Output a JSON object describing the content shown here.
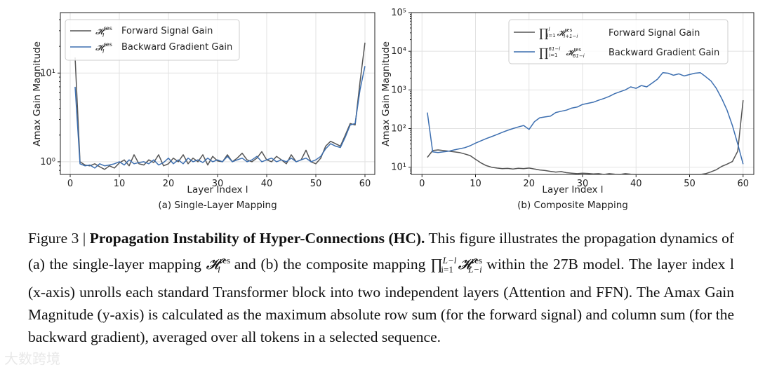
{
  "chart_data": [
    {
      "type": "line",
      "subtitle": "(a) Single-Layer Mapping",
      "xlabel": "Layer Index l",
      "ylabel": "Amax Gain Magnitude",
      "yscale": "log",
      "xlim": [
        -2,
        62
      ],
      "ylim": [
        0.72,
        48
      ],
      "xticks": [
        "0",
        "10",
        "20",
        "30",
        "40",
        "50",
        "60"
      ],
      "yticks": [
        "10⁰",
        "10¹"
      ],
      "grid": true,
      "legend_position": "upper-left",
      "series": [
        {
          "name": "H_l^res Forward Signal Gain",
          "legend_label": "Forward Signal Gain",
          "color": "#555555",
          "x": [
            1,
            2,
            3,
            4,
            5,
            6,
            7,
            8,
            9,
            10,
            11,
            12,
            13,
            14,
            15,
            16,
            17,
            18,
            19,
            20,
            21,
            22,
            23,
            24,
            25,
            26,
            27,
            28,
            29,
            30,
            31,
            32,
            33,
            34,
            35,
            36,
            37,
            38,
            39,
            40,
            41,
            42,
            43,
            44,
            45,
            46,
            47,
            48,
            49,
            50,
            51,
            52,
            53,
            54,
            55,
            56,
            57,
            58,
            59,
            60
          ],
          "values": [
            15,
            1.0,
            0.92,
            0.9,
            0.95,
            0.88,
            0.82,
            0.9,
            0.85,
            0.97,
            1.05,
            0.9,
            1.2,
            0.95,
            0.92,
            1.05,
            0.98,
            1.2,
            0.9,
            0.95,
            1.1,
            1.0,
            1.2,
            0.95,
            1.1,
            1.0,
            1.2,
            0.92,
            1.15,
            1.02,
            1.0,
            1.2,
            1.0,
            1.1,
            1.25,
            1.05,
            1.0,
            1.1,
            1.3,
            1.05,
            1.0,
            1.15,
            1.05,
            0.95,
            1.2,
            1.0,
            1.05,
            1.35,
            1.0,
            0.95,
            1.1,
            1.5,
            1.7,
            1.6,
            1.5,
            2.0,
            2.7,
            2.6,
            8,
            22
          ]
        },
        {
          "name": "H_l^res Backward Gradient Gain",
          "legend_label": "Backward Gradient Gain",
          "color": "#3d6fb0",
          "x": [
            1,
            2,
            3,
            4,
            5,
            6,
            7,
            8,
            9,
            10,
            11,
            12,
            13,
            14,
            15,
            16,
            17,
            18,
            19,
            20,
            21,
            22,
            23,
            24,
            25,
            26,
            27,
            28,
            29,
            30,
            31,
            32,
            33,
            34,
            35,
            36,
            37,
            38,
            39,
            40,
            41,
            42,
            43,
            44,
            45,
            46,
            47,
            48,
            49,
            50,
            51,
            52,
            53,
            54,
            55,
            56,
            57,
            58,
            59,
            60
          ],
          "values": [
            7,
            0.95,
            0.9,
            0.92,
            0.85,
            0.95,
            0.9,
            0.92,
            0.95,
            1.0,
            0.92,
            1.05,
            0.95,
            0.98,
            1.0,
            0.95,
            1.05,
            0.92,
            0.98,
            1.1,
            0.95,
            1.05,
            0.95,
            1.1,
            1.0,
            1.05,
            0.98,
            1.1,
            1.0,
            1.05,
            1.0,
            1.15,
            1.0,
            1.05,
            1.1,
            1.0,
            1.05,
            1.15,
            1.0,
            1.05,
            1.1,
            1.0,
            1.05,
            1.0,
            1.1,
            1.0,
            1.05,
            1.1,
            1.0,
            1.05,
            1.15,
            1.4,
            1.6,
            1.5,
            1.45,
            1.9,
            2.6,
            2.7,
            6.5,
            12
          ]
        }
      ]
    },
    {
      "type": "line",
      "subtitle": "(b) Composite Mapping",
      "xlabel": "Layer Index l",
      "ylabel": "Amax Gain Magnitude",
      "yscale": "log",
      "xlim": [
        -2,
        62
      ],
      "ylim": [
        6.5,
        100000
      ],
      "xticks": [
        "0",
        "10",
        "20",
        "30",
        "40",
        "50",
        "60"
      ],
      "yticks": [
        "10¹",
        "10²",
        "10³",
        "10⁴",
        "10⁵"
      ],
      "grid": true,
      "legend_position": "upper-right",
      "series": [
        {
          "name": "∏ H_{l+1-i}^res Forward Signal Gain",
          "legend_label": "Forward Signal Gain",
          "color": "#555555",
          "x": [
            1,
            2,
            3,
            4,
            5,
            6,
            7,
            8,
            9,
            10,
            11,
            12,
            13,
            14,
            15,
            16,
            17,
            18,
            19,
            20,
            21,
            22,
            23,
            24,
            25,
            26,
            27,
            28,
            29,
            30,
            31,
            32,
            33,
            34,
            35,
            36,
            37,
            38,
            39,
            40,
            41,
            42,
            43,
            44,
            45,
            46,
            47,
            48,
            49,
            50,
            51,
            52,
            53,
            54,
            55,
            56,
            57,
            58,
            59,
            60
          ],
          "values": [
            18,
            27,
            28,
            27,
            26,
            25,
            24,
            22,
            20,
            16,
            13,
            11,
            10,
            9.5,
            9.2,
            9.3,
            9.0,
            9.4,
            9.2,
            9.5,
            9.0,
            8.5,
            8.2,
            7.8,
            7.5,
            7.7,
            7.2,
            7.0,
            6.8,
            7.0,
            6.9,
            6.7,
            6.8,
            6.5,
            6.8,
            6.6,
            6.5,
            6.8,
            6.6,
            6.0,
            5.6,
            5.3,
            5.4,
            5.2,
            5.5,
            5.3,
            5.6,
            5.7,
            5.6,
            5.5,
            5.4,
            6.0,
            6.8,
            7.6,
            8.6,
            10.5,
            12,
            14,
            26,
            540
          ]
        },
        {
          "name": "∏ H_{61-i}^res Backward Gradient Gain",
          "legend_label": "Backward Gradient Gain",
          "color": "#3d6fb0",
          "x": [
            1,
            2,
            3,
            4,
            5,
            6,
            7,
            8,
            9,
            10,
            11,
            12,
            13,
            14,
            15,
            16,
            17,
            18,
            19,
            20,
            21,
            22,
            23,
            24,
            25,
            26,
            27,
            28,
            29,
            30,
            31,
            32,
            33,
            34,
            35,
            36,
            37,
            38,
            39,
            40,
            41,
            42,
            43,
            44,
            45,
            46,
            47,
            48,
            49,
            50,
            51,
            52,
            53,
            54,
            55,
            56,
            57,
            58,
            59,
            60
          ],
          "values": [
            260,
            25,
            24,
            25,
            26,
            28,
            30,
            32,
            36,
            42,
            48,
            55,
            62,
            70,
            80,
            90,
            100,
            110,
            120,
            95,
            150,
            190,
            200,
            210,
            260,
            280,
            300,
            340,
            360,
            420,
            450,
            480,
            540,
            600,
            680,
            800,
            900,
            1000,
            1200,
            1100,
            1300,
            1200,
            1500,
            1900,
            2800,
            2700,
            2400,
            2600,
            2300,
            2500,
            2700,
            2800,
            2200,
            1700,
            1100,
            600,
            300,
            120,
            40,
            12
          ]
        }
      ]
    }
  ],
  "legend_a": {
    "fwd_math": "𝓗",
    "fwd_sup": "res",
    "fwd_sub": "l",
    "fwd_label": "Forward Signal Gain",
    "bwd_math": "𝓗",
    "bwd_sup": "res",
    "bwd_sub": "l",
    "bwd_label": "Backward Gradient Gain"
  },
  "legend_b": {
    "fwd_math": "∏",
    "fwd_lim_top": "l",
    "fwd_lim_bot": "i=1",
    "fwd_term": "𝓗",
    "fwd_term_sup": "res",
    "fwd_term_sub": "l+1−i",
    "fwd_label": "Forward Signal Gain",
    "bwd_math": "∏",
    "bwd_lim_top": "61−l",
    "bwd_lim_bot": "i=1",
    "bwd_term": "𝓗",
    "bwd_term_sup": "res",
    "bwd_term_sub": "61−i",
    "bwd_label": "Backward Gradient Gain"
  },
  "caption": {
    "figure_label": "Figure 3 |",
    "title": "Propagation Instability of Hyper-Connections (HC).",
    "line1_rest": "This figure illustrates the",
    "line2_a": "propagation dynamics of (a) the single-layer mapping",
    "m1": "𝓗",
    "m1_sup": "res",
    "m1_sub": "l",
    "line2_b": "and (b) the composite mapping",
    "m2_prod": "∏",
    "m2_top": "L−l",
    "m2_bot": "i=1",
    "m2_term": "𝓗",
    "m2_sup": "res",
    "m2_sub": "L−i",
    "line3": "within the 27B model. The layer index l (x-axis) unrolls each standard Transformer block into two independent layers (Attention and FFN). The Amax Gain Magnitude (y-axis) is calculated as the maximum absolute row sum (for the forward signal) and column sum (for the backward gradient), averaged over all tokens in a selected sequence."
  },
  "watermark": "大数跨境"
}
